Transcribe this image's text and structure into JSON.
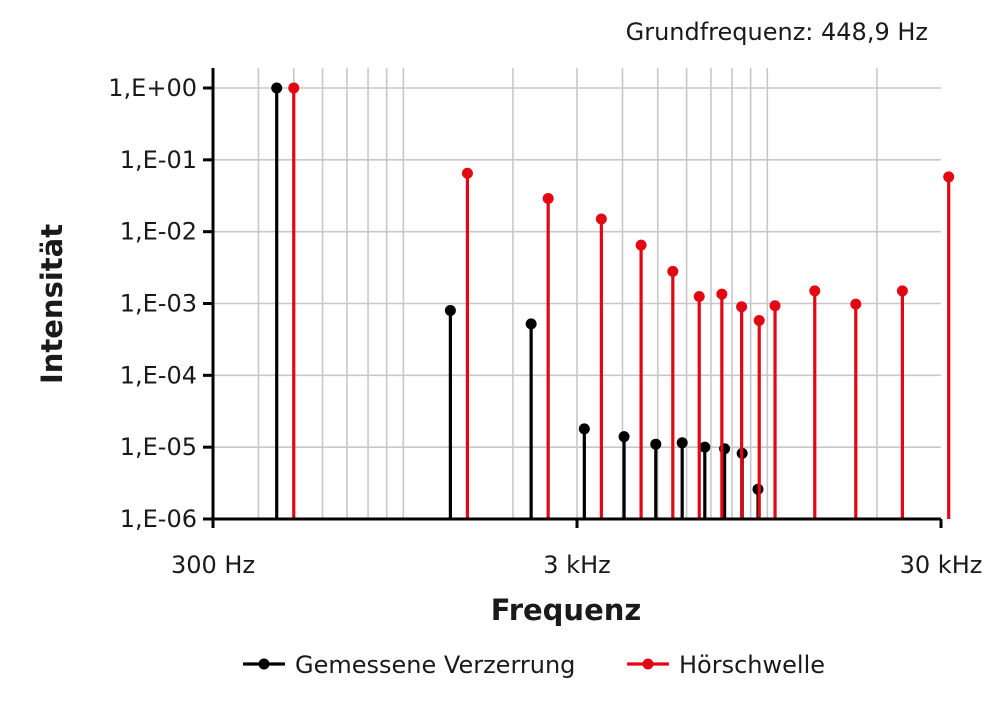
{
  "chart_data": {
    "type": "stem",
    "subtitle": "Grundfrequenz: 448,9 Hz",
    "xlabel": "Frequenz",
    "ylabel": "Intensität",
    "x_scale": "log",
    "y_scale": "log",
    "xlim": [
      300,
      30000
    ],
    "ylim": [
      1e-06,
      1
    ],
    "x_ticks": [
      {
        "value": 300,
        "label": "300 Hz"
      },
      {
        "value": 3000,
        "label": "3 kHz"
      },
      {
        "value": 30000,
        "label": "30 kHz"
      }
    ],
    "y_ticks": [
      {
        "value": 1,
        "label": "1,E+00"
      },
      {
        "value": 0.1,
        "label": "1,E-01"
      },
      {
        "value": 0.01,
        "label": "1,E-02"
      },
      {
        "value": 0.001,
        "label": "1,E-03"
      },
      {
        "value": 0.0001,
        "label": "1,E-04"
      },
      {
        "value": 1e-05,
        "label": "1,E-05"
      },
      {
        "value": 1e-06,
        "label": "1,E-06"
      }
    ],
    "grid": true,
    "legend_position": "bottom",
    "series": [
      {
        "name": "Gemessene Verzerrung",
        "color": "#000000",
        "points": [
          {
            "x": 448.9,
            "y": 1.0
          },
          {
            "x": 1346.7,
            "y": 0.0008
          },
          {
            "x": 2244.5,
            "y": 0.00052
          },
          {
            "x": 3142.3,
            "y": 1.8e-05
          },
          {
            "x": 4040.1,
            "y": 1.4e-05
          },
          {
            "x": 4937.9,
            "y": 1.1e-05
          },
          {
            "x": 5835.7,
            "y": 1.15e-05
          },
          {
            "x": 6733.5,
            "y": 1e-05
          },
          {
            "x": 7631.3,
            "y": 9.5e-06
          },
          {
            "x": 8529.1,
            "y": 8.2e-06
          },
          {
            "x": 9426.9,
            "y": 2.6e-06
          }
        ]
      },
      {
        "name": "Hörschwelle",
        "color": "#e30613",
        "points": [
          {
            "x": 500,
            "y": 1.0
          },
          {
            "x": 1500,
            "y": 0.065
          },
          {
            "x": 2500,
            "y": 0.029
          },
          {
            "x": 3500,
            "y": 0.015
          },
          {
            "x": 4500,
            "y": 0.0065
          },
          {
            "x": 5500,
            "y": 0.0028
          },
          {
            "x": 6500,
            "y": 0.00125
          },
          {
            "x": 7500,
            "y": 0.00135
          },
          {
            "x": 8500,
            "y": 0.0009
          },
          {
            "x": 9500,
            "y": 0.00058
          },
          {
            "x": 10500,
            "y": 0.00093
          },
          {
            "x": 13500,
            "y": 0.0015
          },
          {
            "x": 17500,
            "y": 0.00098
          },
          {
            "x": 23500,
            "y": 0.0015
          },
          {
            "x": 31500,
            "y": 0.058
          }
        ]
      }
    ]
  }
}
